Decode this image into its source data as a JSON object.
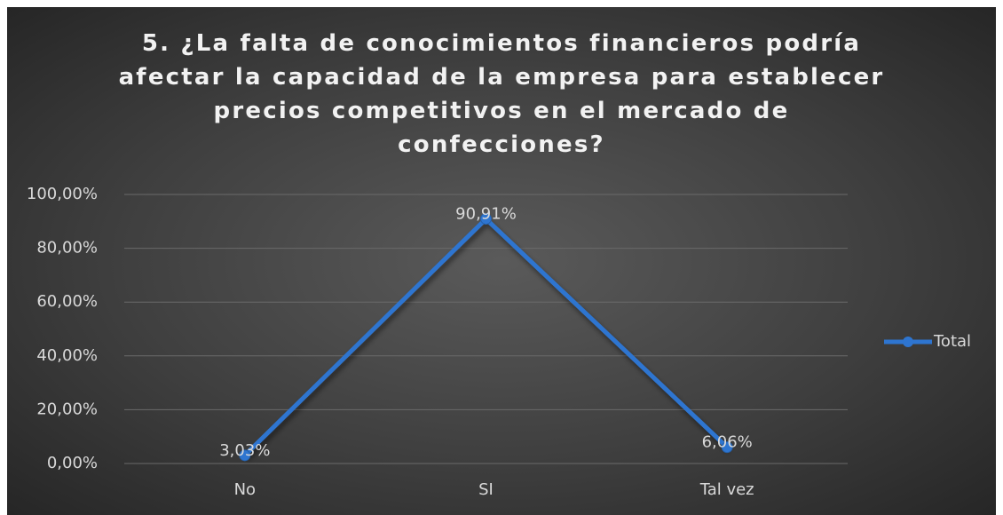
{
  "chart_data": {
    "type": "line",
    "title": "5. ¿La falta de conocimientos financieros podría afectar la capacidad de la empresa para establecer precios competitivos en el mercado de confecciones?",
    "categories": [
      "No",
      "SI",
      "Tal vez"
    ],
    "series": [
      {
        "name": "Total",
        "color": "#2e75d0",
        "values": [
          3.03,
          90.91,
          6.06
        ],
        "value_labels": [
          "3,03%",
          "90,91%",
          "6,06%"
        ]
      }
    ],
    "ylim": [
      0,
      100
    ],
    "yticks": [
      {
        "value": 0,
        "label": "0,00%"
      },
      {
        "value": 20,
        "label": "20,00%"
      },
      {
        "value": 40,
        "label": "40,00%"
      },
      {
        "value": 60,
        "label": "60,00%"
      },
      {
        "value": 80,
        "label": "80,00%"
      },
      {
        "value": 100,
        "label": "100,00%"
      }
    ],
    "grid": true,
    "legend": "right"
  }
}
